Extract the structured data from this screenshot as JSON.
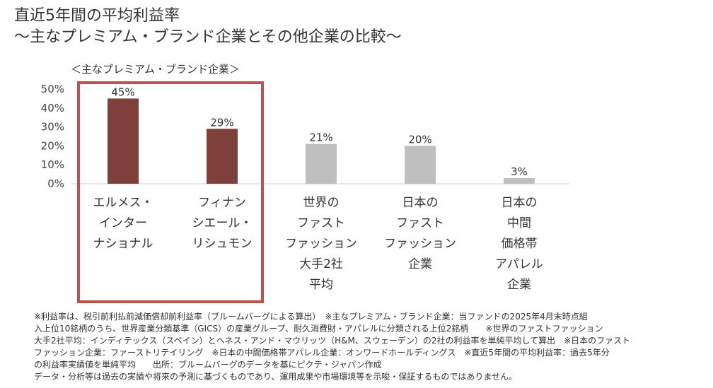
{
  "title_line1": "直近5年間の平均利益率",
  "title_line2": "〜主なプレミアム・ブランド企業とその他企業の比較〜",
  "group_label": "＜主なプレミアム・ブランド企業＞",
  "chart_data": {
    "type": "bar",
    "categories": [
      "エルメス・\nインター\nナショナル",
      "フィナン\nシエール・\nリシュモン",
      "世界の\nファスト\nファッション\n大手2社\n平均",
      "日本の\nファスト\nファッション\n企業",
      "日本の\n中間\n価格帯\nアパレル\n企業"
    ],
    "values": [
      45,
      29,
      21,
      20,
      3
    ],
    "value_labels": [
      "45%",
      "29%",
      "21%",
      "20%",
      "3%"
    ],
    "ylim": [
      0,
      50
    ],
    "yticks": [
      "0%",
      "10%",
      "20%",
      "30%",
      "40%",
      "50%"
    ],
    "colors": [
      "#7f3f3a",
      "#7f3f3a",
      "#bfbfbf",
      "#bfbfbf",
      "#bfbfbf"
    ],
    "highlight_color": "#c0504d",
    "highlighted_categories": [
      0,
      1
    ]
  },
  "footnote": [
    "※利益率は、税引前利払前減価償却前利益率（ブルームバーグによる算出）　※主なプレミアム・ブランド企業：当ファンドの2025年4月末時点組",
    "入上位10銘柄のうち、世界産業分類基準（GICS）の産業グループ、耐久消費財・アパレルに分類される上位2銘柄　　※世界のファストファッション",
    "大手2社平均：インディテックス（スペイン）とヘネス・アンド・マウリッツ（H&M、スウェーデン）の2社の利益率を単純平均して算出　※日本のファスト",
    "ファッション企業：ファーストリテイリング　※日本の中間価格帯アパレル企業：オンワードホールディングス　※直近5年間の平均利益率：過去5年分",
    "の利益率実績値を単純平均　　出所：ブルームバーグのデータを基にピクテ・ジャパン作成",
    "データ・分析等は過去の実績や将来の予測に基づくものであり、運用成果や市場環境等を示唆・保証するものではありません。"
  ]
}
